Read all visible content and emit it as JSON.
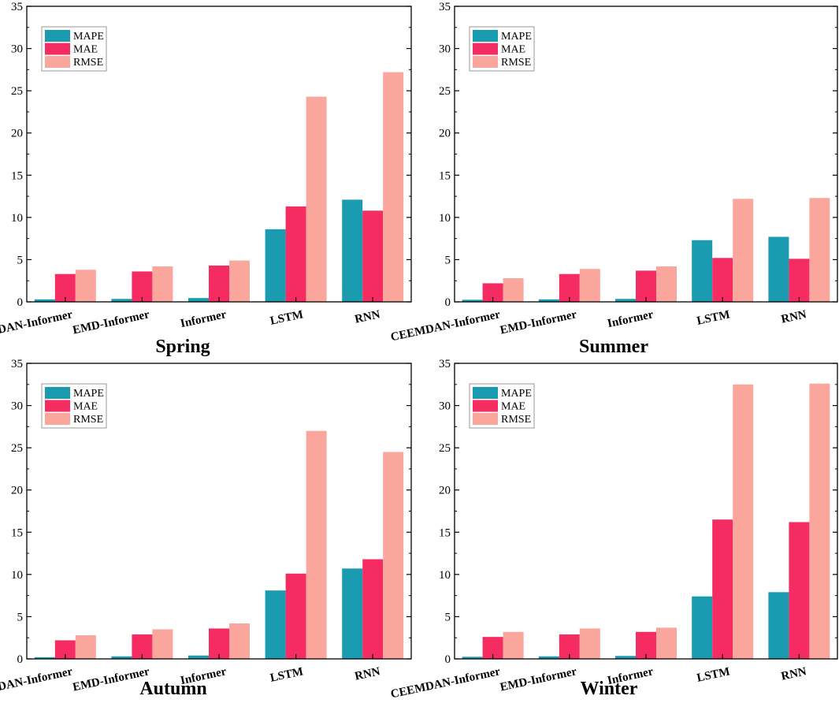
{
  "figure": {
    "series_names": [
      "MAPE",
      "MAE",
      "RMSE"
    ],
    "colors": {
      "MAPE": "#1a9bb0",
      "MAE": "#f52c61",
      "RMSE": "#fba69d"
    },
    "categories": [
      "CEEMDAN-Informer",
      "EMD-Informer",
      "Informer",
      "LSTM",
      "RNN"
    ],
    "y_ticks": [
      "0",
      "5",
      "10",
      "15",
      "20",
      "25",
      "30",
      "35"
    ]
  },
  "chart_data": [
    {
      "type": "bar",
      "title": "Spring",
      "categories": [
        "CEEMDAN-Informer",
        "EMD-Informer",
        "Informer",
        "LSTM",
        "RNN"
      ],
      "series": [
        {
          "name": "MAPE",
          "values": [
            0.3,
            0.35,
            0.45,
            8.6,
            12.1
          ]
        },
        {
          "name": "MAE",
          "values": [
            3.3,
            3.6,
            4.3,
            11.3,
            10.8
          ]
        },
        {
          "name": "RMSE",
          "values": [
            3.8,
            4.2,
            4.9,
            24.3,
            27.2
          ]
        }
      ],
      "ylim": [
        0,
        35
      ],
      "legend": "top-left"
    },
    {
      "type": "bar",
      "title": "Summer",
      "categories": [
        "CEEMDAN-Informer",
        "EMD-Informer",
        "Informer",
        "LSTM",
        "RNN"
      ],
      "series": [
        {
          "name": "MAPE",
          "values": [
            0.25,
            0.3,
            0.35,
            7.3,
            7.7
          ]
        },
        {
          "name": "MAE",
          "values": [
            2.2,
            3.3,
            3.7,
            5.2,
            5.1
          ]
        },
        {
          "name": "RMSE",
          "values": [
            2.8,
            3.9,
            4.2,
            12.2,
            12.3
          ]
        }
      ],
      "ylim": [
        0,
        35
      ],
      "legend": "top-left"
    },
    {
      "type": "bar",
      "title": "Autumn",
      "categories": [
        "CEEMDAN-Informer",
        "EMD-Informer",
        "Informer",
        "LSTM",
        "RNN"
      ],
      "series": [
        {
          "name": "MAPE",
          "values": [
            0.2,
            0.3,
            0.4,
            8.1,
            10.7
          ]
        },
        {
          "name": "MAE",
          "values": [
            2.2,
            2.9,
            3.6,
            10.1,
            11.8
          ]
        },
        {
          "name": "RMSE",
          "values": [
            2.8,
            3.5,
            4.2,
            27.0,
            24.5
          ]
        }
      ],
      "ylim": [
        0,
        35
      ],
      "legend": "top-left"
    },
    {
      "type": "bar",
      "title": "Winter",
      "categories": [
        "CEEMDAN-Informer",
        "EMD-Informer",
        "Informer",
        "LSTM",
        "RNN"
      ],
      "series": [
        {
          "name": "MAPE",
          "values": [
            0.25,
            0.3,
            0.35,
            7.4,
            7.9
          ]
        },
        {
          "name": "MAE",
          "values": [
            2.6,
            2.9,
            3.2,
            16.5,
            16.2
          ]
        },
        {
          "name": "RMSE",
          "values": [
            3.2,
            3.6,
            3.7,
            32.5,
            32.6
          ]
        }
      ],
      "ylim": [
        0,
        35
      ],
      "legend": "top-left"
    }
  ]
}
